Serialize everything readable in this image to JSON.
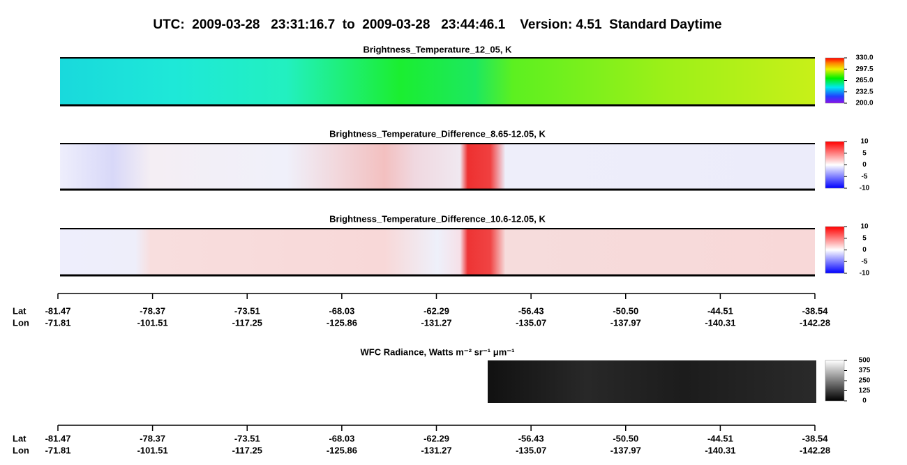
{
  "title": "UTC:  2009-03-28   23:31:16.7  to  2009-03-28   23:44:46.1    Version: 4.51  Standard Daytime",
  "chart_data": [
    {
      "type": "heatmap",
      "title": "Brightness_Temperature_12_05, K",
      "colorbar": {
        "lim": [
          200,
          330
        ],
        "ticks": [
          {
            "value": 200,
            "label": "200.0"
          },
          {
            "value": 232.5,
            "label": "232.5"
          },
          {
            "value": 265,
            "label": "265.0"
          },
          {
            "value": 297.5,
            "label": "297.5"
          },
          {
            "value": 330,
            "label": "330.0"
          }
        ]
      }
    },
    {
      "type": "heatmap",
      "title": "Brightness_Temperature_Difference_8.65-12.05, K",
      "colorbar": {
        "lim": [
          -10,
          10
        ],
        "ticks": [
          -10,
          -5,
          0,
          5,
          10
        ]
      }
    },
    {
      "type": "heatmap",
      "title": "Brightness_Temperature_Difference_10.6-12.05, K",
      "colorbar": {
        "lim": [
          -10,
          10
        ],
        "ticks": [
          -10,
          -5,
          0,
          5,
          10
        ]
      }
    },
    {
      "type": "heatmap",
      "title": "WFC Radiance, Watts m⁻² sr⁻¹ μm⁻¹",
      "colorbar": {
        "lim": [
          0,
          500
        ],
        "ticks": [
          0,
          125,
          250,
          375,
          500
        ]
      }
    }
  ],
  "x_axis": {
    "row_labels": [
      "Lat",
      "Lon"
    ],
    "lat": [
      "-81.47",
      "-78.37",
      "-73.51",
      "-68.03",
      "-62.29",
      "-56.43",
      "-50.50",
      "-44.51",
      "-38.54"
    ],
    "lon": [
      "-71.81",
      "-101.51",
      "-117.25",
      "-125.86",
      "-131.27",
      "-135.07",
      "-137.97",
      "-140.31",
      "-142.28"
    ]
  }
}
